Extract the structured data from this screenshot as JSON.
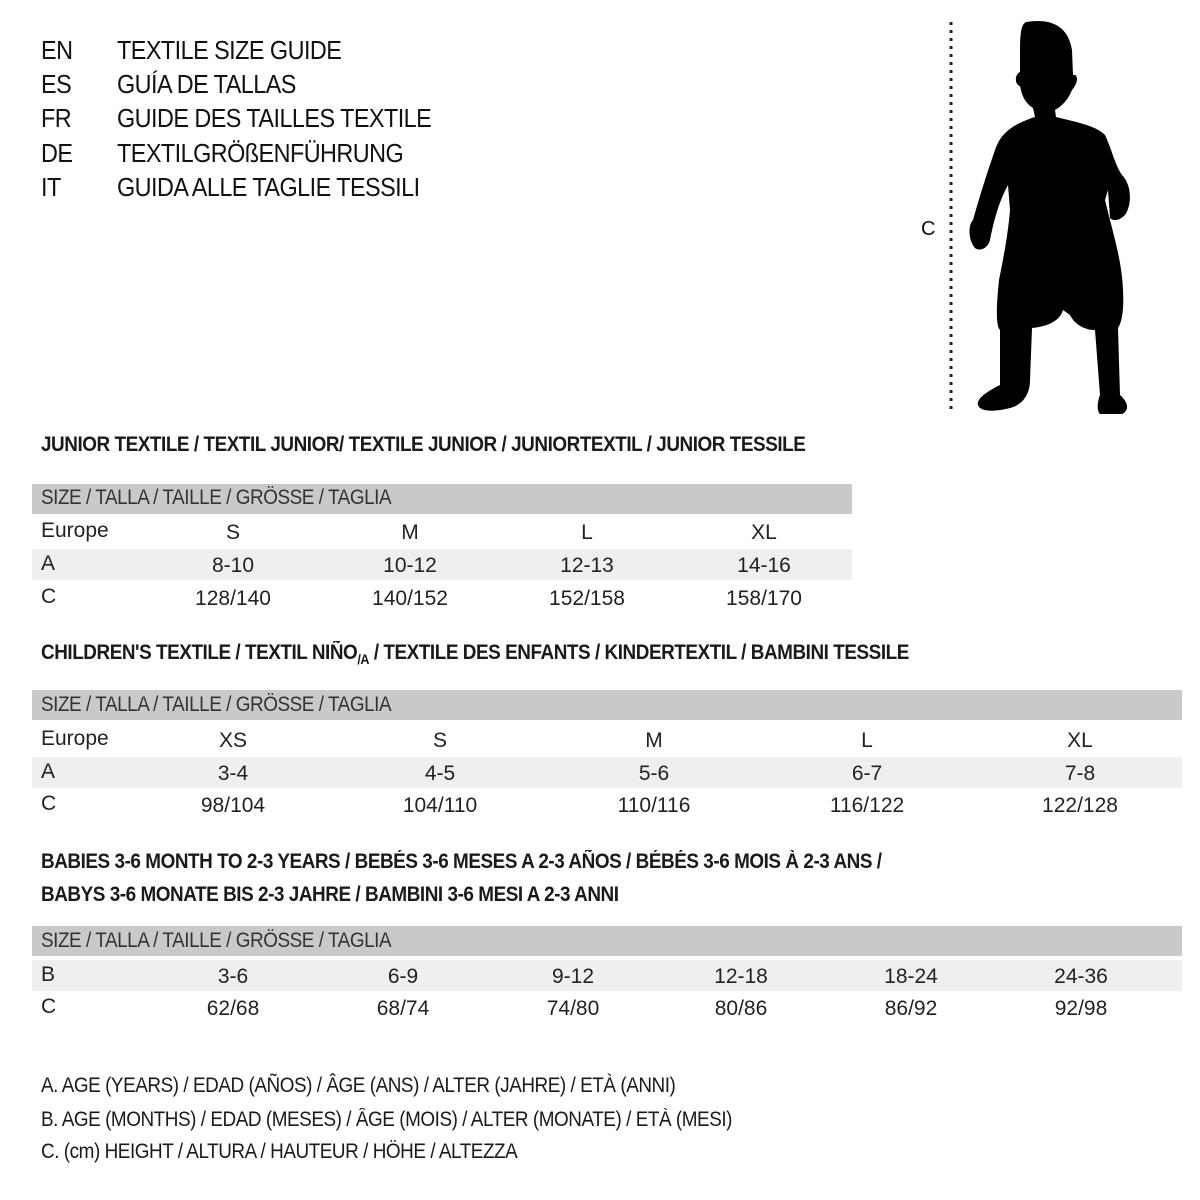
{
  "titles": [
    {
      "code": "EN",
      "text": "TEXTILE SIZE GUIDE"
    },
    {
      "code": "ES",
      "text": "GUÍA DE TALLAS"
    },
    {
      "code": "FR",
      "text": "GUIDE DES TAILLES TEXTILE"
    },
    {
      "code": "DE",
      "text": "TEXTILGRÖßENFÜHRUNG"
    },
    {
      "code": "IT",
      "text": "GUIDA ALLE TAGLIE TESSILI"
    }
  ],
  "figure": {
    "label": "C",
    "icon": "child-silhouette-icon"
  },
  "header_label": "SIZE / TALLA / TAILLE / GRÖSSE / TAGLIA",
  "junior": {
    "title": "JUNIOR TEXTILE / TEXTIL JUNIOR/ TEXTILE JUNIOR / JUNIORTEXTIL / JUNIOR TESSILE",
    "rows": [
      {
        "label": "Europe",
        "values": [
          "S",
          "M",
          "L",
          "XL"
        ]
      },
      {
        "label": "A",
        "values": [
          "8-10",
          "10-12",
          "12-13",
          "14-16"
        ]
      },
      {
        "label": "C",
        "values": [
          "128/140",
          "140/152",
          "152/158",
          "158/170"
        ]
      }
    ]
  },
  "children": {
    "title_pre": "CHILDREN'S TEXTILE / TEXTIL NIÑO",
    "title_sub": "/A",
    "title_post": " / TEXTILE DES ENFANTS / KINDERTEXTIL / BAMBINI TESSILE",
    "rows": [
      {
        "label": "Europe",
        "values": [
          "XS",
          "S",
          "M",
          "L",
          "XL"
        ]
      },
      {
        "label": "A",
        "values": [
          "3-4",
          "4-5",
          "5-6",
          "6-7",
          "7-8"
        ]
      },
      {
        "label": "C",
        "values": [
          "98/104",
          "104/110",
          "110/116",
          "116/122",
          "122/128"
        ]
      }
    ]
  },
  "babies": {
    "title_line1": "BABIES 3-6 MONTH TO 2-3 YEARS / BEBÉS 3-6 MESES A 2-3 AÑOS / BÉBÉS 3-6 MOIS À 2-3 ANS /",
    "title_line2": "BABYS 3-6 MONATE BIS 2-3 JAHRE / BAMBINI 3-6 MESI A 2-3 ANNI",
    "rows": [
      {
        "label": "B",
        "values": [
          "3-6",
          "6-9",
          "9-12",
          "12-18",
          "18-24",
          "24-36"
        ]
      },
      {
        "label": "C",
        "values": [
          "62/68",
          "68/74",
          "74/80",
          "80/86",
          "86/92",
          "92/98"
        ]
      }
    ]
  },
  "legend": [
    "A. AGE (YEARS) / EDAD (AÑOS) / ÂGE (ANS) / ALTER (JAHRE) / ETÀ (ANNI)",
    "B. AGE (MONTHS) / EDAD (MESES) / ÂGE (MOIS) / ALTER (MONATE) / ETÀ (MESI)",
    "C. (cm) HEIGHT / ALTURA / HAUTEUR / HÖHE / ALTEZZA"
  ],
  "colors": {
    "header_bar": "#c9c9c9",
    "alt_row": "#efefef",
    "text": "#111111"
  }
}
